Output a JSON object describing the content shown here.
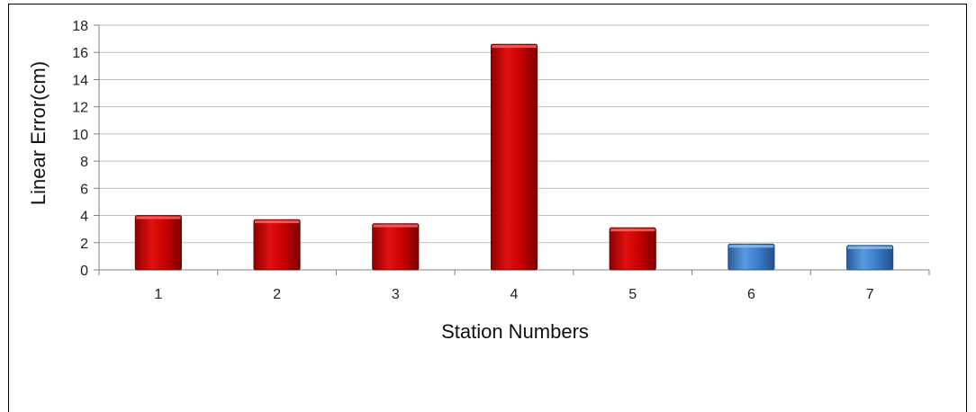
{
  "chart_data": {
    "type": "bar",
    "title": "",
    "xlabel": "Station Numbers",
    "ylabel": "Linear Error(cm)",
    "categories": [
      "1",
      "2",
      "3",
      "4",
      "5",
      "6",
      "7"
    ],
    "values": [
      4.0,
      3.7,
      3.4,
      16.6,
      3.1,
      1.9,
      1.8
    ],
    "bar_colors": [
      "#c00000",
      "#c00000",
      "#c00000",
      "#c00000",
      "#c00000",
      "#3a7bc8",
      "#3a7bc8"
    ],
    "ylim": [
      0,
      18
    ],
    "yticks": [
      "0",
      "2",
      "4",
      "6",
      "8",
      "10",
      "12",
      "14",
      "16",
      "18"
    ],
    "grid": true,
    "legend": "none"
  }
}
